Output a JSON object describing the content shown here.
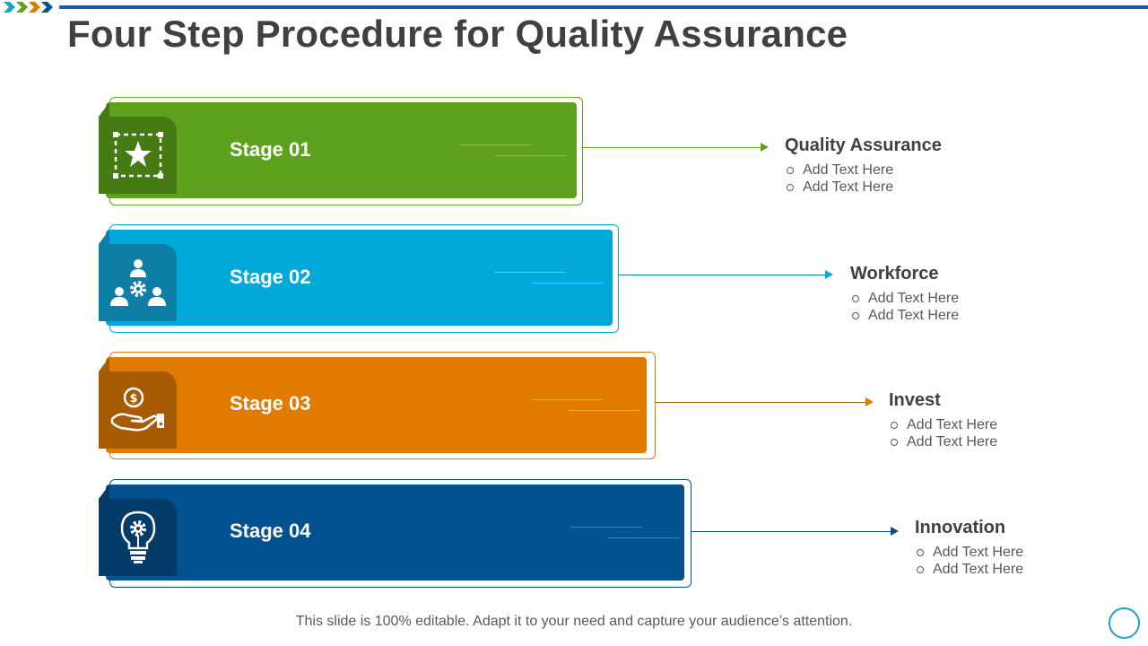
{
  "title": "Four Step Procedure for Quality Assurance",
  "colors": {
    "green": "#5ea11e",
    "green_dark": "#467a13",
    "blue": "#02a8d8",
    "blue_dark": "#0d7fa6",
    "orange": "#e07b00",
    "orange_dark": "#a85a05",
    "navy": "#03528f",
    "navy_dark": "#053b68",
    "accent_line": "#1f5aa0"
  },
  "stages": [
    {
      "label": "Stage 01",
      "icon": "star-frame-icon",
      "heading": "Quality Assurance",
      "items": [
        "Add Text Here",
        "Add Text Here"
      ]
    },
    {
      "label": "Stage 02",
      "icon": "team-gear-icon",
      "heading": "Workforce",
      "items": [
        "Add Text Here",
        "Add Text Here"
      ]
    },
    {
      "label": "Stage 03",
      "icon": "hand-coin-icon",
      "heading": "Invest",
      "items": [
        "Add Text Here",
        "Add Text Here"
      ]
    },
    {
      "label": "Stage 04",
      "icon": "lightbulb-gear-icon",
      "heading": "Innovation",
      "items": [
        "Add Text Here",
        "Add Text Here"
      ]
    }
  ],
  "footer": "This slide is 100% editable. Adapt it to your need and capture your audience’s attention."
}
